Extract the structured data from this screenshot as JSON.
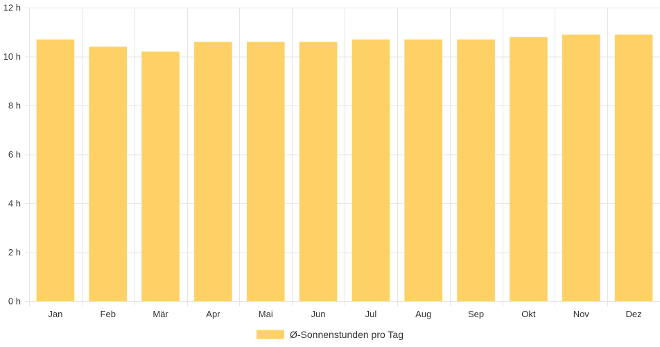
{
  "chart_data": {
    "type": "bar",
    "title": "",
    "xlabel": "",
    "ylabel": "",
    "ylim": [
      0,
      12
    ],
    "ytick_step": 2,
    "ytick_suffix": " h",
    "grid": true,
    "legend_position": "bottom-center",
    "categories": [
      "Jan",
      "Feb",
      "Mär",
      "Apr",
      "Mai",
      "Jun",
      "Jul",
      "Aug",
      "Sep",
      "Okt",
      "Nov",
      "Dez"
    ],
    "series": [
      {
        "name": "Ø-Sonnenstunden pro Tag",
        "color": "#fdd166",
        "values": [
          10.7,
          10.4,
          10.2,
          10.6,
          10.6,
          10.6,
          10.7,
          10.7,
          10.7,
          10.8,
          10.9,
          10.9
        ]
      }
    ]
  },
  "colors": {
    "grid": "#e5e5e5",
    "axis_text": "#333333"
  }
}
